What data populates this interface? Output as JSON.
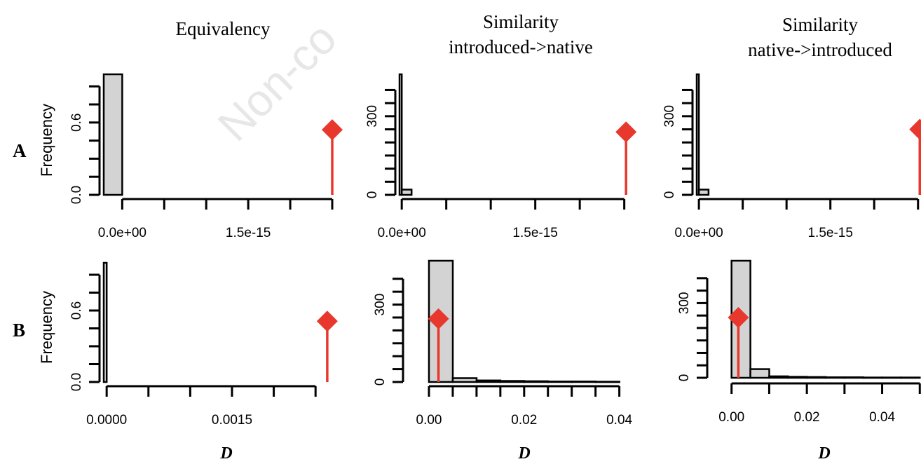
{
  "figure": {
    "column_titles": [
      [
        "Equivalency"
      ],
      [
        "Similarity",
        "introduced->native"
      ],
      [
        "Similarity",
        "native->introduced"
      ]
    ],
    "row_labels": [
      "A",
      "B"
    ],
    "ylabel": "Frequency",
    "xlabel": "D",
    "watermark": "Non-co",
    "colors": {
      "bar_fill": "#d3d3d3",
      "axis": "#000000",
      "marker": "#e8372c"
    }
  },
  "chart_data": [
    {
      "type": "bar",
      "panel": "A-equivalency",
      "title": "Equivalency",
      "row": "A",
      "ylabel": "Frequency",
      "xlabel": "",
      "x_ticks": [
        0,
        5e-16,
        1e-15,
        1.5e-15,
        2e-15,
        2.5e-15
      ],
      "x_tick_labels": [
        "0.0e+00",
        "",
        "",
        "1.5e-15",
        "",
        ""
      ],
      "y_ticks": [
        0,
        0.15,
        0.3,
        0.45,
        0.6,
        0.75,
        0.9
      ],
      "y_tick_labels": [
        "0.0",
        "",
        "",
        "",
        "0.6",
        "",
        ""
      ],
      "xlim": [
        -2.2e-16,
        2.55e-15
      ],
      "ylim": [
        0,
        1.0
      ],
      "bins": [
        {
          "start": -2.2e-16,
          "end": 0,
          "count": 1
        }
      ],
      "observed": {
        "x": 2.5e-15,
        "y": 0.54
      }
    },
    {
      "type": "bar",
      "panel": "A-similarity-introduced-native",
      "title": "Similarity introduced->native",
      "row": "A",
      "ylabel": "",
      "xlabel": "",
      "x_ticks": [
        0,
        5e-16,
        1e-15,
        1.5e-15,
        2e-15,
        2.5e-15
      ],
      "x_tick_labels": [
        "0.0e+00",
        "",
        "",
        "1.5e-15",
        "",
        ""
      ],
      "y_ticks": [
        0,
        50,
        100,
        150,
        200,
        250,
        300,
        350,
        400
      ],
      "y_tick_labels": [
        "0",
        "",
        "",
        "",
        "",
        "",
        "300",
        "",
        ""
      ],
      "xlim": [
        -2.5e-17,
        2.55e-15
      ],
      "ylim": [
        0,
        460
      ],
      "bins": [
        {
          "start": -2.5e-17,
          "end": 0,
          "count": 460
        },
        {
          "start": 0,
          "end": 1.1e-16,
          "count": 20
        }
      ],
      "observed": {
        "x": 2.52e-15,
        "y": 240
      }
    },
    {
      "type": "bar",
      "panel": "A-similarity-native-introduced",
      "title": "Similarity native->introduced",
      "row": "A",
      "ylabel": "",
      "xlabel": "",
      "x_ticks": [
        0,
        5e-16,
        1e-15,
        1.5e-15,
        2e-15,
        2.5e-15
      ],
      "x_tick_labels": [
        "0.0e+00",
        "",
        "",
        "1.5e-15",
        "",
        ""
      ],
      "y_ticks": [
        0,
        50,
        100,
        150,
        200,
        250,
        300,
        350,
        400
      ],
      "y_tick_labels": [
        "0",
        "",
        "",
        "",
        "",
        "",
        "300",
        "",
        ""
      ],
      "xlim": [
        -2.5e-17,
        2.55e-15
      ],
      "ylim": [
        0,
        460
      ],
      "bins": [
        {
          "start": -2.5e-17,
          "end": 0,
          "count": 460
        },
        {
          "start": 0,
          "end": 1.1e-16,
          "count": 20
        }
      ],
      "observed": {
        "x": 2.52e-15,
        "y": 250
      }
    },
    {
      "type": "bar",
      "panel": "B-equivalency",
      "title": "Equivalency",
      "row": "B",
      "ylabel": "Frequency",
      "xlabel": "D",
      "x_ticks": [
        0,
        0.0005,
        0.001,
        0.0015,
        0.002,
        0.0025
      ],
      "x_tick_labels": [
        "0.0000",
        "",
        "",
        "0.0015",
        "",
        ""
      ],
      "y_ticks": [
        0,
        0.15,
        0.3,
        0.45,
        0.6,
        0.75,
        0.9
      ],
      "y_tick_labels": [
        "0.0",
        "",
        "",
        "",
        "0.6",
        "",
        ""
      ],
      "xlim": [
        -3.5e-05,
        0.00275
      ],
      "ylim": [
        0,
        1.0
      ],
      "bins": [
        {
          "start": -3.5e-05,
          "end": 0,
          "count": 1
        }
      ],
      "observed": {
        "x": 0.00264,
        "y": 0.51
      }
    },
    {
      "type": "bar",
      "panel": "B-similarity-introduced-native",
      "title": "Similarity introduced->native",
      "row": "B",
      "ylabel": "",
      "xlabel": "D",
      "x_ticks": [
        0,
        0.005,
        0.01,
        0.015,
        0.02,
        0.025,
        0.03,
        0.035,
        0.04
      ],
      "x_tick_labels": [
        "0.00",
        "",
        "",
        "",
        "0.02",
        "",
        "",
        "",
        "0.04"
      ],
      "y_ticks": [
        0,
        50,
        100,
        150,
        200,
        250,
        300,
        350,
        400
      ],
      "y_tick_labels": [
        "0",
        "",
        "",
        "",
        "",
        "",
        "300",
        "",
        ""
      ],
      "xlim": [
        0,
        0.0405
      ],
      "ylim": [
        0,
        470
      ],
      "bins": [
        {
          "start": 0,
          "end": 0.005,
          "count": 470
        },
        {
          "start": 0.005,
          "end": 0.01,
          "count": 15
        },
        {
          "start": 0.01,
          "end": 0.015,
          "count": 6
        },
        {
          "start": 0.015,
          "end": 0.02,
          "count": 4
        },
        {
          "start": 0.02,
          "end": 0.025,
          "count": 3
        },
        {
          "start": 0.025,
          "end": 0.03,
          "count": 2
        },
        {
          "start": 0.03,
          "end": 0.035,
          "count": 2
        },
        {
          "start": 0.035,
          "end": 0.04,
          "count": 1
        }
      ],
      "observed": {
        "x": 0.002,
        "y": 245
      }
    },
    {
      "type": "bar",
      "panel": "B-similarity-native-introduced",
      "title": "Similarity native->introduced",
      "row": "B",
      "ylabel": "",
      "xlabel": "D",
      "x_ticks": [
        0,
        0.01,
        0.02,
        0.03,
        0.04,
        0.05
      ],
      "x_tick_labels": [
        "0.00",
        "",
        "0.02",
        "",
        "0.04",
        ""
      ],
      "y_ticks": [
        0,
        50,
        100,
        150,
        200,
        250,
        300,
        350,
        400
      ],
      "y_tick_labels": [
        "0",
        "",
        "",
        "",
        "",
        "",
        "300",
        "",
        ""
      ],
      "xlim": [
        -0.002,
        0.052
      ],
      "ylim": [
        0,
        470
      ],
      "bins": [
        {
          "start": 0,
          "end": 0.005,
          "count": 470
        },
        {
          "start": 0.005,
          "end": 0.01,
          "count": 35
        },
        {
          "start": 0.01,
          "end": 0.015,
          "count": 6
        },
        {
          "start": 0.015,
          "end": 0.02,
          "count": 4
        },
        {
          "start": 0.02,
          "end": 0.025,
          "count": 3
        },
        {
          "start": 0.025,
          "end": 0.03,
          "count": 2
        },
        {
          "start": 0.03,
          "end": 0.035,
          "count": 2
        },
        {
          "start": 0.035,
          "end": 0.04,
          "count": 1
        },
        {
          "start": 0.04,
          "end": 0.045,
          "count": 1
        },
        {
          "start": 0.045,
          "end": 0.05,
          "count": 1
        }
      ],
      "observed": {
        "x": 0.0018,
        "y": 242
      }
    }
  ]
}
